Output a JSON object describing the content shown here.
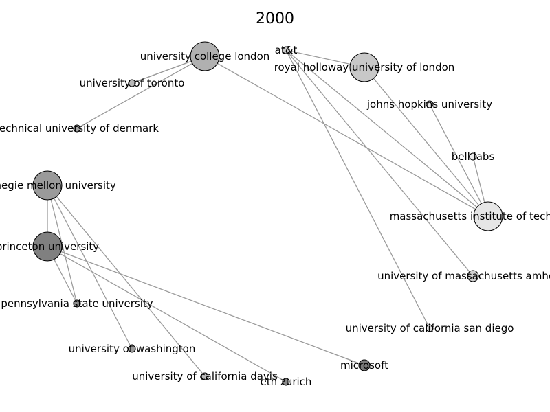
{
  "title": "2000",
  "nodes": [
    {
      "id": "ucl",
      "label": "university college london",
      "fill": "#b0b0b0"
    },
    {
      "id": "att",
      "label": "at&t",
      "fill": "#cccccc"
    },
    {
      "id": "rhul",
      "label": "royal holloway university of london",
      "fill": "#c8c8c8"
    },
    {
      "id": "toronto",
      "label": "university of toronto",
      "fill": "#b8b8b8"
    },
    {
      "id": "jhu",
      "label": "johns hopkins university",
      "fill": "#ececec"
    },
    {
      "id": "dtu",
      "label": "technical university of denmark",
      "fill": "#a8a8a8"
    },
    {
      "id": "belllabs",
      "label": "bell labs",
      "fill": "#eeeeee"
    },
    {
      "id": "cmu",
      "label": "carnegie mellon university",
      "fill": "#9a9a9a"
    },
    {
      "id": "mit",
      "label": "massachusetts institute of technology",
      "fill": "#e6e6e6"
    },
    {
      "id": "princeton",
      "label": "princeton university",
      "fill": "#808080"
    },
    {
      "id": "umass",
      "label": "university of massachusetts amherst",
      "fill": "#d0d0d0"
    },
    {
      "id": "psu",
      "label": "pennsylvania state university",
      "fill": "#909090"
    },
    {
      "id": "ucsd",
      "label": "university of california san diego",
      "fill": "#e0e0e0"
    },
    {
      "id": "uw",
      "label": "university of washington",
      "fill": "#9a9a9a"
    },
    {
      "id": "microsoft",
      "label": "microsoft",
      "fill": "#7a7a7a"
    },
    {
      "id": "ucdavis",
      "label": "university of california davis",
      "fill": "#b8b8b8"
    },
    {
      "id": "eth",
      "label": "eth zurich",
      "fill": "#8a8a8a"
    }
  ],
  "edges": [
    [
      "ucl",
      "toronto"
    ],
    [
      "ucl",
      "toronto"
    ],
    [
      "ucl",
      "dtu"
    ],
    [
      "ucl",
      "mit"
    ],
    [
      "att",
      "rhul"
    ],
    [
      "att",
      "mit"
    ],
    [
      "att",
      "umass"
    ],
    [
      "att",
      "ucsd"
    ],
    [
      "rhul",
      "mit"
    ],
    [
      "jhu",
      "mit"
    ],
    [
      "belllabs",
      "mit"
    ],
    [
      "cmu",
      "princeton"
    ],
    [
      "cmu",
      "psu"
    ],
    [
      "cmu",
      "uw"
    ],
    [
      "cmu",
      "ucdavis"
    ],
    [
      "princeton",
      "psu"
    ],
    [
      "princeton",
      "eth"
    ],
    [
      "princeton",
      "microsoft"
    ]
  ]
}
